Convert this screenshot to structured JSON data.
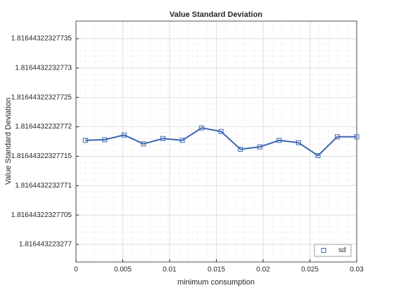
{
  "chart_data": {
    "type": "line",
    "title": "Value Standard Deviation",
    "xlabel": "minimum consumption",
    "ylabel": "Value Standard Deviation",
    "x": [
      0.001,
      0.00307,
      0.00514,
      0.00721,
      0.00929,
      0.01136,
      0.01343,
      0.0155,
      0.01757,
      0.01964,
      0.02171,
      0.02379,
      0.02586,
      0.02793,
      0.03
    ],
    "series": [
      {
        "name": "sd",
        "color": "#3a66b0",
        "marker": "square",
        "values": [
          1.816443223277177,
          1.816443223277178,
          1.816443223277186,
          1.816443223277171,
          1.81644322327718,
          1.816443223277177,
          1.816443223277198,
          1.816443223277192,
          1.816443223277162,
          1.816443223277166,
          1.816443223277177,
          1.816443223277173,
          1.816443223277151,
          1.816443223277183,
          1.816443223277183
        ]
      }
    ],
    "xlim": [
      0,
      0.03
    ],
    "xticks": [
      0,
      0.005,
      0.01,
      0.015,
      0.02,
      0.025,
      0.03
    ],
    "ylim": [
      1.81644322327697,
      1.81644322327738
    ],
    "yticks": [
      1.816443223277,
      1.81644322327705,
      1.8164432232771,
      1.81644322327715,
      1.8164432232772,
      1.81644322327725,
      1.8164432232773,
      1.81644322327735
    ],
    "grid": true,
    "minor_grid": true,
    "legend": "bottom-right"
  }
}
